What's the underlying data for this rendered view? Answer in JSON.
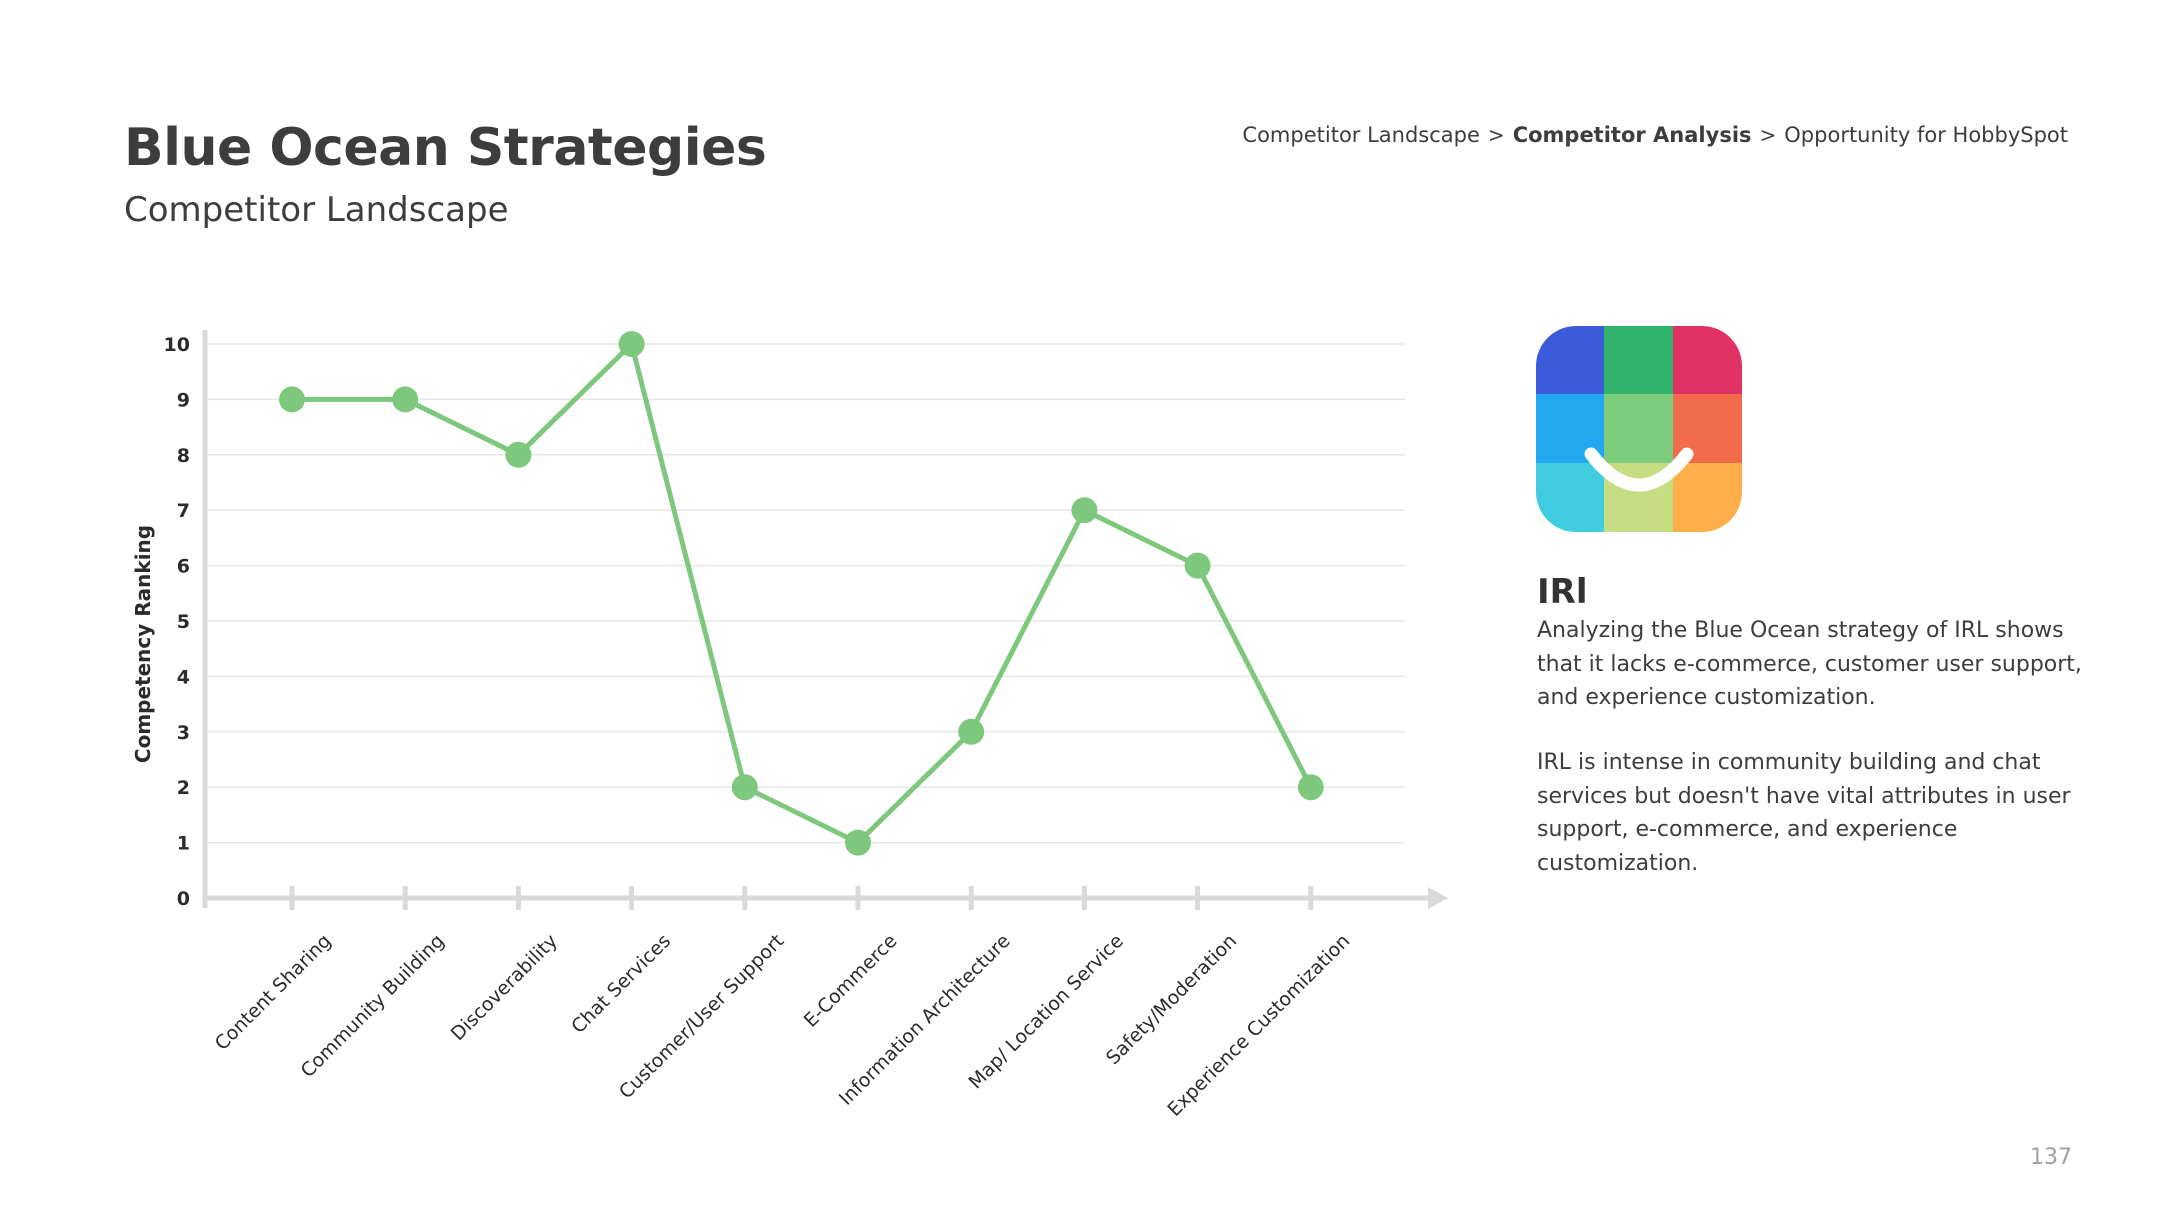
{
  "header": {
    "title": "Blue Ocean Strategies",
    "subtitle": "Competitor Landscape"
  },
  "breadcrumb": {
    "items": [
      "Competitor Landscape",
      "Competitor Analysis",
      "Opportunity for HobbySpot"
    ],
    "current_index": 1,
    "separator": ">"
  },
  "chart_data": {
    "type": "line",
    "ylabel": "Competency Ranking",
    "xlabel": "",
    "ylim": [
      0,
      10
    ],
    "yticks": [
      "0",
      "1",
      "2",
      "3",
      "4",
      "5",
      "6",
      "7",
      "8",
      "9",
      "10"
    ],
    "grid": true,
    "categories": [
      "Content Sharing",
      "Community Building",
      "Discoverability",
      "Chat Services",
      "Customer/User Support",
      "E-Commerce",
      "Information Architecture",
      "Map/ Location Service",
      "Safety/Moderation",
      "Experience Customization"
    ],
    "series": [
      {
        "values": [
          9,
          9,
          8,
          10,
          2,
          1,
          3,
          7,
          6,
          2
        ]
      }
    ],
    "colors": {
      "line": "#7dc87d",
      "axis": "#d9d9d9",
      "grid": "#e6e6e6"
    }
  },
  "side_panel": {
    "icon": "irl-app-icon",
    "app_name": "IRl",
    "paragraph_1": "Analyzing the Blue Ocean strategy of IRL shows that it lacks e-commerce, customer user support, and experience customization.",
    "paragraph_2": "IRL is intense in community building and chat services but doesn't have vital attributes in user support, e-commerce, and experience customization."
  },
  "page_number": "137"
}
